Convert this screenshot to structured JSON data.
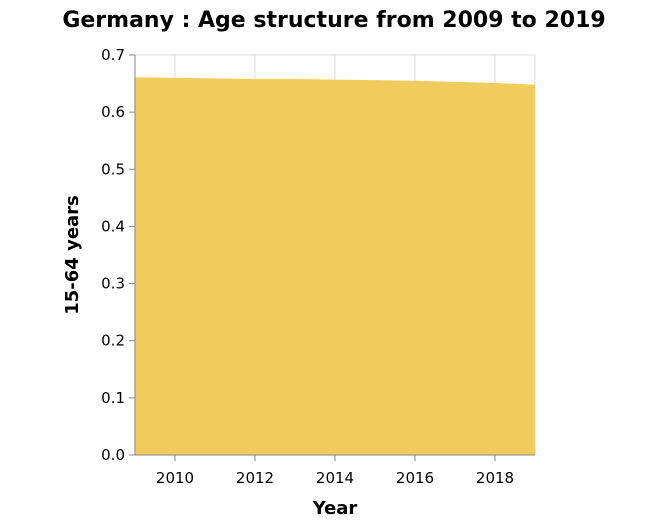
{
  "chart_data": {
    "type": "area",
    "title": "Germany : Age structure from 2009 to 2019",
    "xlabel": "Year",
    "ylabel": "15-64 years",
    "x": [
      2009,
      2010,
      2011,
      2012,
      2013,
      2014,
      2015,
      2016,
      2017,
      2018,
      2019
    ],
    "series": [
      {
        "values": [
          0.661,
          0.66,
          0.659,
          0.658,
          0.658,
          0.657,
          0.656,
          0.655,
          0.653,
          0.651,
          0.648
        ]
      }
    ],
    "xlim": [
      2009,
      2019
    ],
    "ylim": [
      0,
      0.7
    ],
    "x_ticks": [
      2010,
      2012,
      2014,
      2016,
      2018
    ],
    "y_ticks": [
      "0.0",
      "0.1",
      "0.2",
      "0.3",
      "0.4",
      "0.5",
      "0.6",
      "0.7"
    ],
    "grid": true,
    "fill_color": "#F0CC5D",
    "grid_color": "#DDDDDD"
  }
}
